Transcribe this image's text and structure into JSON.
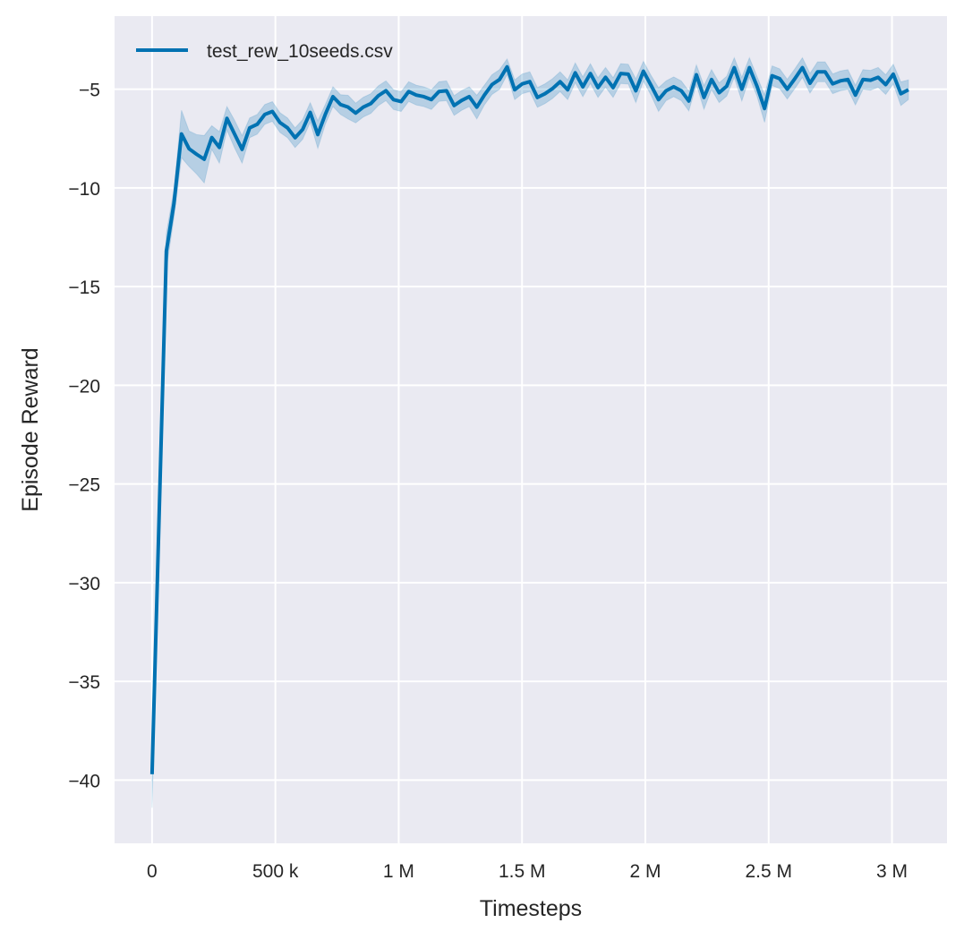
{
  "chart_data": {
    "type": "line",
    "title": "",
    "xlabel": "Timesteps",
    "ylabel": "Episode Reward",
    "xlim": [
      -152000,
      3223000
    ],
    "ylim": [
      -43.2,
      -1.3
    ],
    "grid": true,
    "legend_position": "top-left",
    "background_color": "#EAEAF2",
    "grid_color": "#FFFFFF",
    "x_ticks": [
      0,
      500000,
      1000000,
      1500000,
      2000000,
      2500000,
      3000000
    ],
    "x_tick_labels": [
      "0",
      "500 k",
      "1 M",
      "1.5 M",
      "2 M",
      "2.5 M",
      "3 M"
    ],
    "y_ticks": [
      -40,
      -35,
      -30,
      -25,
      -20,
      -15,
      -10,
      -5
    ],
    "y_tick_labels": [
      "−40",
      "−35",
      "−30",
      "−25",
      "−20",
      "−15",
      "−10",
      "−5"
    ],
    "series": [
      {
        "name": "test_rew_10seeds.csv",
        "color": "#0072B2",
        "x": [
          0,
          58000,
          88700,
          119400,
          150100,
          180800,
          211500,
          242200,
          272900,
          303600,
          334300,
          365000,
          395700,
          426400,
          457100,
          487800,
          518500,
          549200,
          579900,
          610600,
          641300,
          672000,
          702700,
          733400,
          764100,
          794800,
          825500,
          856200,
          886900,
          917600,
          948300,
          979000,
          1009700,
          1040400,
          1071100,
          1101800,
          1132500,
          1163200,
          1193900,
          1224600,
          1255300,
          1286000,
          1316700,
          1347400,
          1378100,
          1408800,
          1439500,
          1470200,
          1500900,
          1531600,
          1562300,
          1593000,
          1623700,
          1654400,
          1685100,
          1715800,
          1746500,
          1777200,
          1807900,
          1838600,
          1869300,
          1900000,
          1930700,
          1961400,
          1992100,
          2022800,
          2053500,
          2084200,
          2114900,
          2145600,
          2176300,
          2207000,
          2237700,
          2268400,
          2299100,
          2329800,
          2360500,
          2391200,
          2421900,
          2452600,
          2483300,
          2514000,
          2544700,
          2575400,
          2606100,
          2636800,
          2667500,
          2698200,
          2728900,
          2759600,
          2790300,
          2821000,
          2851700,
          2882400,
          2913100,
          2943800,
          2974500,
          3005200,
          3035900,
          3066600
        ],
        "y": [
          -39.7,
          -13.2,
          -10.8,
          -7.27,
          -8.02,
          -8.3,
          -8.55,
          -7.45,
          -7.95,
          -6.48,
          -7.27,
          -8.05,
          -6.96,
          -6.78,
          -6.28,
          -6.13,
          -6.69,
          -6.96,
          -7.46,
          -7.04,
          -6.18,
          -7.3,
          -6.27,
          -5.38,
          -5.78,
          -5.91,
          -6.21,
          -5.91,
          -5.73,
          -5.33,
          -5.08,
          -5.53,
          -5.63,
          -5.12,
          -5.3,
          -5.38,
          -5.53,
          -5.12,
          -5.08,
          -5.83,
          -5.57,
          -5.38,
          -5.91,
          -5.3,
          -4.77,
          -4.51,
          -3.87,
          -5.03,
          -4.73,
          -4.62,
          -5.42,
          -5.23,
          -4.97,
          -4.62,
          -5.03,
          -4.17,
          -4.88,
          -4.21,
          -4.92,
          -4.4,
          -4.92,
          -4.21,
          -4.24,
          -5.08,
          -4.09,
          -4.8,
          -5.53,
          -5.08,
          -4.88,
          -5.08,
          -5.6,
          -4.27,
          -5.42,
          -4.51,
          -5.18,
          -4.85,
          -3.91,
          -5.0,
          -3.91,
          -4.85,
          -5.98,
          -4.32,
          -4.47,
          -5.0,
          -4.47,
          -3.91,
          -4.7,
          -4.12,
          -4.12,
          -4.73,
          -4.58,
          -4.51,
          -5.3,
          -4.51,
          -4.55,
          -4.4,
          -4.77,
          -4.24,
          -5.23,
          -5.03
        ],
        "ci": [
          1.7,
          0.9,
          0.7,
          1.2,
          0.9,
          1.0,
          1.2,
          0.6,
          0.8,
          0.6,
          0.7,
          0.7,
          0.5,
          0.5,
          0.5,
          0.5,
          0.5,
          0.5,
          0.5,
          0.5,
          0.5,
          0.7,
          0.5,
          0.5,
          0.5,
          0.6,
          0.5,
          0.5,
          0.5,
          0.5,
          0.5,
          0.5,
          0.5,
          0.5,
          0.5,
          0.5,
          0.5,
          0.5,
          0.5,
          0.5,
          0.5,
          0.5,
          0.6,
          0.5,
          0.5,
          0.5,
          0.4,
          0.5,
          0.5,
          0.5,
          0.5,
          0.5,
          0.5,
          0.5,
          0.5,
          0.5,
          0.5,
          0.5,
          0.5,
          0.5,
          0.5,
          0.5,
          0.5,
          0.6,
          0.5,
          0.5,
          0.6,
          0.5,
          0.5,
          0.5,
          0.5,
          0.5,
          0.6,
          0.5,
          0.5,
          0.5,
          0.5,
          0.6,
          0.5,
          0.5,
          0.7,
          0.5,
          0.5,
          0.5,
          0.5,
          0.5,
          0.5,
          0.5,
          0.5,
          0.5,
          0.5,
          0.5,
          0.5,
          0.5,
          0.5,
          0.5,
          0.5,
          0.5,
          0.6,
          0.5
        ]
      }
    ]
  }
}
